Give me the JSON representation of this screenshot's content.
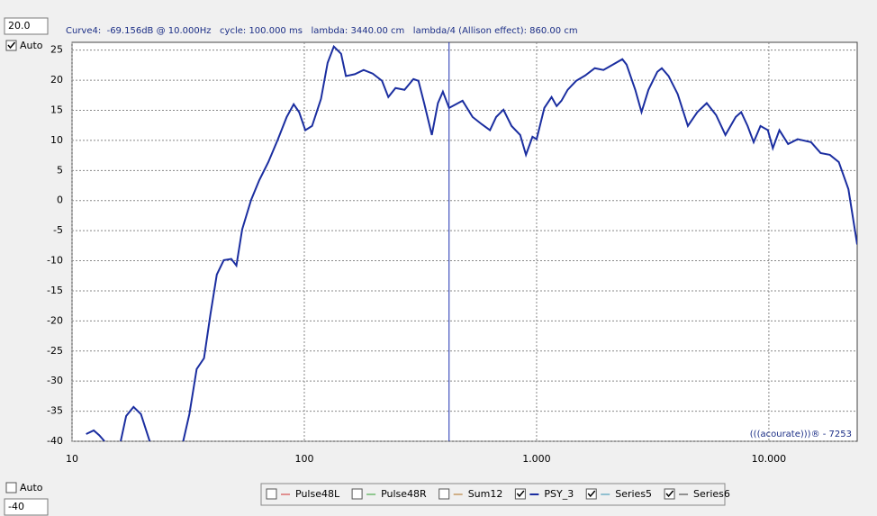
{
  "controls": {
    "y_max_input": "20.0",
    "y_max_auto": "Auto",
    "y_min_auto": "Auto",
    "y_min_input": "-40"
  },
  "chart_data": {
    "type": "line",
    "header": "Curve4:  -69.156dB @ 10.000Hz   cycle: 100.000 ms   lambda: 3440.00 cm   lambda/4 (Allison effect): 860.00 cm",
    "watermark": "(((acourate)))® - 7253",
    "x_scale": "log",
    "grid": true,
    "xlim": [
      10,
      24000
    ],
    "ylim": [
      -40,
      26.3
    ],
    "xticks": [
      10,
      100,
      {
        "value": 1000,
        "label": "1.000"
      },
      {
        "value": 10000,
        "label": "10.000"
      }
    ],
    "yticks": [
      25,
      20,
      15,
      10,
      5,
      0,
      -5,
      -10,
      -15,
      -20,
      -25,
      -30,
      -35,
      -40
    ],
    "cursor_x": 420,
    "cursor_color": "#1b2eb0",
    "x": [
      11.5,
      12.4,
      13.1,
      13.8,
      null,
      16.2,
      17.1,
      18.4,
      19.8,
      21.6,
      null,
      30.1,
      32,
      34.4,
      37,
      39.4,
      42,
      45,
      48.5,
      51,
      54,
      59,
      64,
      70,
      77,
      84,
      90,
      95,
      101,
      108,
      118,
      126,
      134,
      144,
      151,
      165,
      180,
      197,
      216,
      230,
      247,
      270,
      295,
      310,
      328,
      354,
      376,
      395,
      420,
      480,
      530,
      580,
      630,
      670,
      720,
      780,
      850,
      900,
      960,
      1000,
      1080,
      1160,
      1220,
      1280,
      1360,
      1480,
      1620,
      1780,
      1940,
      2130,
      2340,
      2440,
      2660,
      2830,
      3030,
      3310,
      3460,
      3700,
      4050,
      4480,
      4920,
      5400,
      5930,
      6500,
      7200,
      7600,
      8100,
      8600,
      9200,
      9900,
      10400,
      11100,
      12100,
      13300,
      15200,
      16700,
      18300,
      20000,
      22000,
      24000
    ],
    "series": [
      {
        "name": "Pulse48L",
        "color": "#d03030",
        "checked": false
      },
      {
        "name": "Pulse48R",
        "color": "#30a030",
        "checked": false
      },
      {
        "name": "Sum12",
        "color": "#b07020",
        "checked": false
      },
      {
        "name": "PSY_3",
        "color": "#1b2ea0",
        "checked": true,
        "values": [
          -38.8,
          -38.2,
          -39,
          -40,
          null,
          -40,
          -35.8,
          -34.3,
          -35.5,
          -40,
          null,
          -40,
          -35.5,
          -28,
          -26.2,
          -19,
          -12.3,
          -9.9,
          -9.7,
          -10.8,
          -4.8,
          0.1,
          3.4,
          6.4,
          10.2,
          13.9,
          16,
          14.7,
          11.7,
          12.4,
          16.9,
          22.9,
          25.6,
          24.4,
          20.7,
          21,
          21.7,
          21.1,
          19.9,
          17.2,
          18.7,
          18.4,
          20.2,
          19.9,
          16.2,
          10.9,
          16.2,
          18.1,
          15.4,
          16.6,
          13.9,
          12.7,
          11.7,
          13.9,
          15.1,
          12.4,
          10.9,
          7.6,
          10.6,
          10.2,
          15.4,
          17.2,
          15.7,
          16.6,
          18.4,
          19.9,
          20.8,
          22,
          21.7,
          22.6,
          23.5,
          22.6,
          18.4,
          14.7,
          18.4,
          21.4,
          22,
          20.7,
          17.7,
          12.4,
          14.7,
          16.2,
          14.2,
          10.9,
          13.9,
          14.7,
          12.4,
          9.7,
          12.4,
          11.7,
          8.7,
          11.7,
          9.4,
          10.2,
          9.7,
          7.9,
          7.6,
          6.4,
          1.9,
          -7.3
        ]
      },
      {
        "name": "Series5",
        "color": "#3090b0",
        "checked": true
      },
      {
        "name": "Series6",
        "color": "#303030",
        "checked": true
      }
    ]
  }
}
